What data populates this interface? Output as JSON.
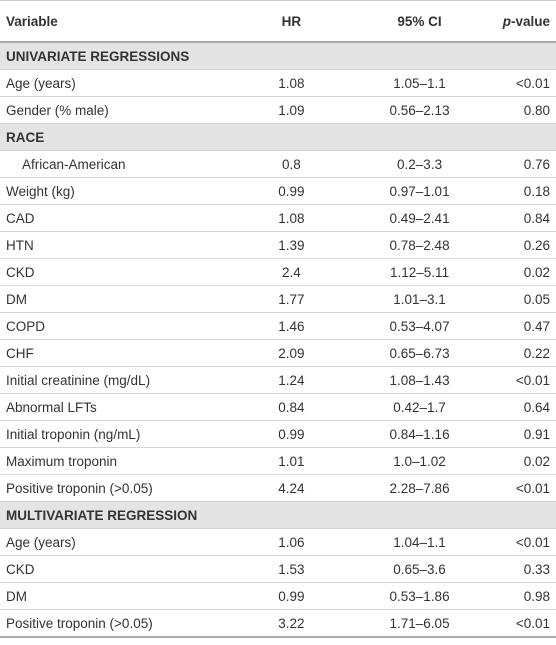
{
  "table": {
    "header": [
      "Variable",
      "HR",
      "95% CI",
      "p-value"
    ],
    "rows": [
      {
        "section": "UNIVARIATE REGRESSIONS"
      },
      {
        "cells": [
          "Age (years)",
          "1.08",
          "1.05–1.1",
          "<0.01"
        ]
      },
      {
        "cells": [
          "Gender (% male)",
          "1.09",
          "0.56–2.13",
          "0.80"
        ]
      },
      {
        "section": "RACE"
      },
      {
        "cells": [
          "African-American",
          "0.8",
          "0.2–3.3",
          "0.76"
        ],
        "indent": true
      },
      {
        "cells": [
          "Weight (kg)",
          "0.99",
          "0.97–1.01",
          "0.18"
        ]
      },
      {
        "cells": [
          "CAD",
          "1.08",
          "0.49–2.41",
          "0.84"
        ]
      },
      {
        "cells": [
          "HTN",
          "1.39",
          "0.78–2.48",
          "0.26"
        ]
      },
      {
        "cells": [
          "CKD",
          "2.4",
          "1.12–5.11",
          "0.02"
        ]
      },
      {
        "cells": [
          "DM",
          "1.77",
          "1.01–3.1",
          "0.05"
        ]
      },
      {
        "cells": [
          "COPD",
          "1.46",
          "0.53–4.07",
          "0.47"
        ]
      },
      {
        "cells": [
          "CHF",
          "2.09",
          "0.65–6.73",
          "0.22"
        ]
      },
      {
        "cells": [
          "Initial creatinine (mg/dL)",
          "1.24",
          "1.08–1.43",
          "<0.01"
        ]
      },
      {
        "cells": [
          "Abnormal LFTs",
          "0.84",
          "0.42–1.7",
          "0.64"
        ]
      },
      {
        "cells": [
          "Initial troponin (ng/mL)",
          "0.99",
          "0.84–1.16",
          "0.91"
        ]
      },
      {
        "cells": [
          "Maximum troponin",
          "1.01",
          "1.0–1.02",
          "0.02"
        ]
      },
      {
        "cells": [
          "Positive troponin (>0.05)",
          "4.24",
          "2.28–7.86",
          "<0.01"
        ]
      },
      {
        "section": "MULTIVARIATE REGRESSION"
      },
      {
        "cells": [
          "Age (years)",
          "1.06",
          "1.04–1.1",
          "<0.01"
        ]
      },
      {
        "cells": [
          "CKD",
          "1.53",
          "0.65–3.6",
          "0.33"
        ]
      },
      {
        "cells": [
          "DM",
          "0.99",
          "0.53–1.86",
          "0.98"
        ]
      },
      {
        "cells": [
          "Positive troponin (>0.05)",
          "3.22",
          "1.71–6.05",
          "<0.01"
        ]
      }
    ]
  }
}
